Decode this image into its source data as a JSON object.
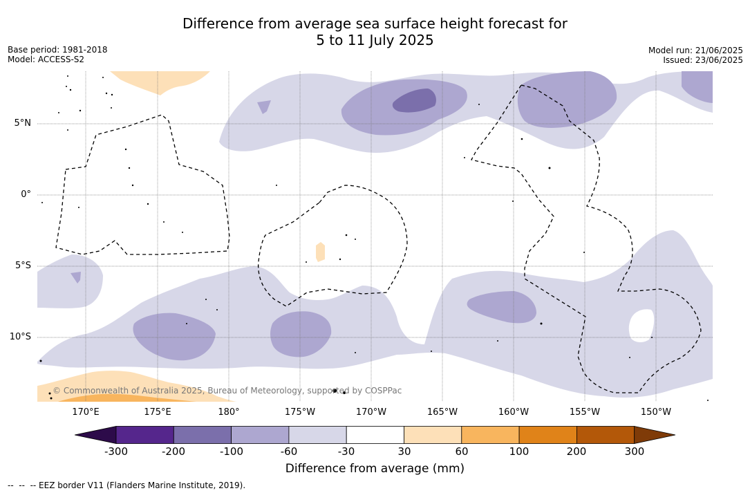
{
  "title": {
    "line1": "Difference from average sea surface height forecast for",
    "line2": "5 to 11 July 2025"
  },
  "meta_left": {
    "base_period": "Base period: 1981-2018",
    "model": "Model: ACCESS-S2"
  },
  "meta_right": {
    "model_run": "Model run: 21/06/2025",
    "issued": "Issued: 23/06/2025"
  },
  "map": {
    "latitude_labels": [
      "5°N",
      "0°",
      "5°S",
      "10°S"
    ],
    "longitude_labels": [
      "170°E",
      "175°E",
      "180°",
      "175°W",
      "170°W",
      "165°W",
      "160°W",
      "155°W",
      "150°W"
    ],
    "copyright": "© Commonwealth of Australia 2025, Bureau of Meteorology, supported by COSPPac"
  },
  "colorbar": {
    "ticks": [
      "-300",
      "-200",
      "-100",
      "-60",
      "-30",
      "30",
      "60",
      "100",
      "200",
      "300"
    ],
    "title": "Difference from average (mm)",
    "colors": {
      "under": "#2d0b4a",
      "c1": "#55268c",
      "c2": "#7b6fab",
      "c3": "#ada7d0",
      "c4": "#d7d7e8",
      "c5": "#ffffff",
      "c6": "#fde0b8",
      "c7": "#f8b55e",
      "c8": "#e08319",
      "c9": "#b35809",
      "over": "#7f3b08"
    }
  },
  "footnote": "--  --  -- EEZ border V11 (Flanders Marine Institute, 2019)."
}
